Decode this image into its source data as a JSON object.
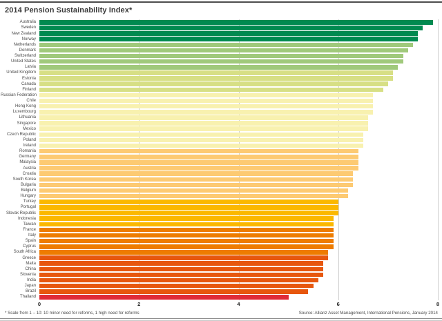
{
  "header": {
    "title": "2014 Pension Sustainability Index*"
  },
  "footer": {
    "footnote": "* Scale from 1 – 10: 10 minor need for reforms, 1 high need for reforms",
    "source": "Source: Allianz Asset Management, International Pensions, January 2014"
  },
  "chart_data": {
    "type": "bar",
    "orientation": "horizontal",
    "title": "2014 Pension Sustainability Index*",
    "xlabel": "",
    "ylabel": "",
    "xlim": [
      0,
      8
    ],
    "xticks": [
      0,
      2,
      4,
      6,
      8
    ],
    "grid": "vertical-gridlines-on",
    "legend": "none",
    "palette": {
      "dark_green": "#008a50",
      "medium_green": "#a0c97b",
      "yellow_green": "#d7df85",
      "pale_yellow": "#f8f1af",
      "light_orange": "#fdca72",
      "amber": "#fbb800",
      "orange": "#ee7c00",
      "vermilion": "#e7570e",
      "red": "#e02b38"
    },
    "bars": [
      {
        "label": "Australia",
        "value": 7.9,
        "color": "#008a50"
      },
      {
        "label": "Sweden",
        "value": 7.7,
        "color": "#008a50"
      },
      {
        "label": "New Zealand",
        "value": 7.6,
        "color": "#008a50"
      },
      {
        "label": "Norway",
        "value": 7.6,
        "color": "#008a50"
      },
      {
        "label": "Netherlands",
        "value": 7.5,
        "color": "#a0c97b"
      },
      {
        "label": "Denmark",
        "value": 7.4,
        "color": "#a0c97b"
      },
      {
        "label": "Switzerland",
        "value": 7.3,
        "color": "#a0c97b"
      },
      {
        "label": "United States",
        "value": 7.3,
        "color": "#a0c97b"
      },
      {
        "label": "Latvia",
        "value": 7.2,
        "color": "#a0c97b"
      },
      {
        "label": "United Kingdom",
        "value": 7.1,
        "color": "#d7df85"
      },
      {
        "label": "Estonia",
        "value": 7.1,
        "color": "#d7df85"
      },
      {
        "label": "Canada",
        "value": 7.0,
        "color": "#d7df85"
      },
      {
        "label": "Finland",
        "value": 6.9,
        "color": "#d7df85"
      },
      {
        "label": "Russian Federation",
        "value": 6.7,
        "color": "#f8f1af"
      },
      {
        "label": "Chile",
        "value": 6.7,
        "color": "#f8f1af"
      },
      {
        "label": "Hong Kong",
        "value": 6.7,
        "color": "#f8f1af"
      },
      {
        "label": "Luxembourg",
        "value": 6.7,
        "color": "#f8f1af"
      },
      {
        "label": "Lithuania",
        "value": 6.6,
        "color": "#f8f1af"
      },
      {
        "label": "Singapore",
        "value": 6.6,
        "color": "#f8f1af"
      },
      {
        "label": "Mexico",
        "value": 6.6,
        "color": "#f8f1af"
      },
      {
        "label": "Czech Republic",
        "value": 6.5,
        "color": "#f8f1af"
      },
      {
        "label": "Poland",
        "value": 6.5,
        "color": "#f8f1af"
      },
      {
        "label": "Ireland",
        "value": 6.5,
        "color": "#f8f1af"
      },
      {
        "label": "Romania",
        "value": 6.4,
        "color": "#fdca72"
      },
      {
        "label": "Germany",
        "value": 6.4,
        "color": "#fdca72"
      },
      {
        "label": "Malaysia",
        "value": 6.4,
        "color": "#fdca72"
      },
      {
        "label": "Austria",
        "value": 6.4,
        "color": "#fdca72"
      },
      {
        "label": "Croatia",
        "value": 6.3,
        "color": "#fdca72"
      },
      {
        "label": "South Korea",
        "value": 6.3,
        "color": "#fdca72"
      },
      {
        "label": "Bulgaria",
        "value": 6.3,
        "color": "#fdca72"
      },
      {
        "label": "Belgium",
        "value": 6.2,
        "color": "#fdca72"
      },
      {
        "label": "Hungary",
        "value": 6.2,
        "color": "#fdca72"
      },
      {
        "label": "Turkey",
        "value": 6.0,
        "color": "#fbb800"
      },
      {
        "label": "Portugal",
        "value": 6.0,
        "color": "#fbb800"
      },
      {
        "label": "Slovak Republic",
        "value": 6.0,
        "color": "#fbb800"
      },
      {
        "label": "Indonesia",
        "value": 5.9,
        "color": "#fbb800"
      },
      {
        "label": "Taiwan",
        "value": 5.9,
        "color": "#fbb800"
      },
      {
        "label": "France",
        "value": 5.9,
        "color": "#ee7c00"
      },
      {
        "label": "Italy",
        "value": 5.9,
        "color": "#ee7c00"
      },
      {
        "label": "Spain",
        "value": 5.9,
        "color": "#ee7c00"
      },
      {
        "label": "Cyprus",
        "value": 5.9,
        "color": "#ee7c00"
      },
      {
        "label": "South Africa",
        "value": 5.8,
        "color": "#ee7c00"
      },
      {
        "label": "Greece",
        "value": 5.8,
        "color": "#e7570e"
      },
      {
        "label": "Malta",
        "value": 5.7,
        "color": "#e7570e"
      },
      {
        "label": "China",
        "value": 5.7,
        "color": "#e7570e"
      },
      {
        "label": "Slovenia",
        "value": 5.7,
        "color": "#e7570e"
      },
      {
        "label": "India",
        "value": 5.6,
        "color": "#e7570e"
      },
      {
        "label": "Japan",
        "value": 5.5,
        "color": "#e7570e"
      },
      {
        "label": "Brazil",
        "value": 5.4,
        "color": "#e7570e"
      },
      {
        "label": "Thailand",
        "value": 5.0,
        "color": "#e02b38"
      }
    ]
  }
}
